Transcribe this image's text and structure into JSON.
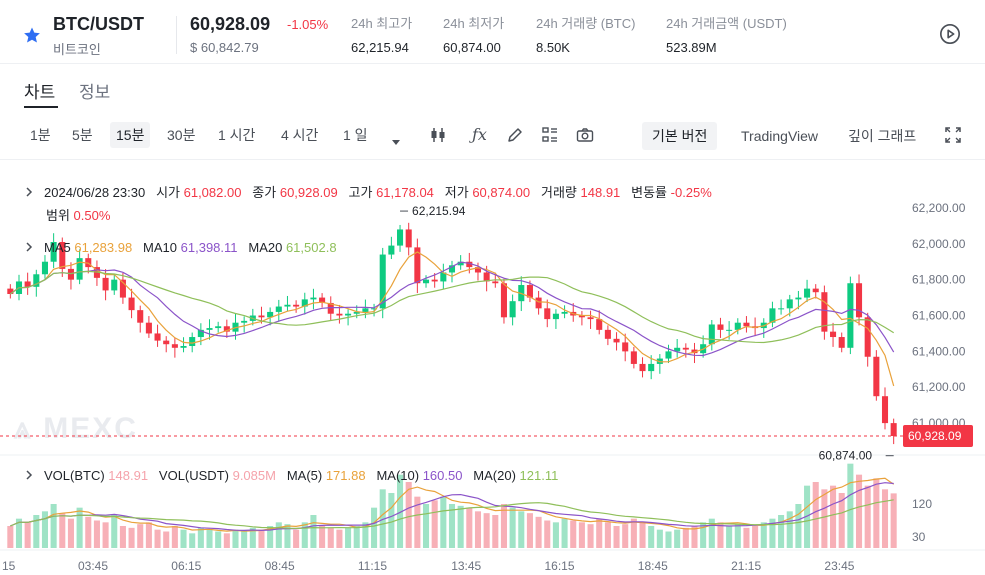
{
  "header": {
    "pair": "BTC/USDT",
    "coin_name": "비트코인",
    "last_price": "60,928.09",
    "change": "-1.05%",
    "usd_price": "$ 60,842.79",
    "stats": [
      {
        "label": "24h 최고가",
        "value": "62,215.94"
      },
      {
        "label": "24h 최저가",
        "value": "60,874.00"
      },
      {
        "label": "24h 거래량 (BTC)",
        "value": "8.50K"
      },
      {
        "label": "24h 거래금액 (USDT)",
        "value": "523.89M"
      }
    ]
  },
  "tabs": [
    {
      "label": "차트",
      "active": true
    },
    {
      "label": "정보",
      "active": false
    }
  ],
  "toolbar": {
    "timeframes": [
      "1분",
      "5분",
      "15분",
      "30분",
      "1 시간",
      "4 시간",
      "1 일"
    ],
    "active_timeframe": "15분",
    "views": [
      "기본 버전",
      "TradingView",
      "깊이 그래프"
    ],
    "active_view": "기본 버전"
  },
  "legend": {
    "datetime": "2024/06/28 23:30",
    "open_label": "시가",
    "open": "61,082.00",
    "close_label": "종가",
    "close": "60,928.09",
    "high_label": "고가",
    "high": "61,178.04",
    "low_label": "저가",
    "low": "60,874.00",
    "volume_label": "거래량",
    "volume": "148.91",
    "change_label": "변동률",
    "change": "-0.25%",
    "range_label": "범위",
    "range": "0.50%",
    "ma5_label": "MA5",
    "ma5": "61,283.98",
    "ma10_label": "MA10",
    "ma10": "61,398.11",
    "ma20_label": "MA20",
    "ma20": "61,502.8"
  },
  "vol_legend": {
    "vol_btc_label": "VOL(BTC)",
    "vol_btc": "148.91",
    "vol_usdt_label": "VOL(USDT)",
    "vol_usdt": "9.085M",
    "ma5_label": "MA(5)",
    "ma5": "171.88",
    "ma10_label": "MA(10)",
    "ma10": "160.50",
    "ma20_label": "MA(20)",
    "ma20": "121.11"
  },
  "chart_data": {
    "type": "candlestick",
    "price_ticks": [
      "62,200.00",
      "62,000.00",
      "61,800.00",
      "61,600.00",
      "61,400.00",
      "61,200.00",
      "61,000.00"
    ],
    "price_tick_values": [
      62200,
      62000,
      61800,
      61600,
      61400,
      61200,
      61000
    ],
    "price_range": [
      60850,
      62300
    ],
    "current_price_label": "60,928.09",
    "current_price": 60928.09,
    "high_marker": "62,215.94",
    "low_marker": "60,874.00",
    "volume_ticks": [
      "120",
      "30"
    ],
    "volume_tick_values": [
      120,
      30
    ],
    "volume_range": [
      0,
      240
    ],
    "time_labels": [
      "15",
      "03:45",
      "06:15",
      "08:45",
      "11:15",
      "13:45",
      "16:15",
      "18:45",
      "21:15",
      "23:45"
    ],
    "closes": [
      61720,
      61790,
      61760,
      61830,
      61900,
      62010,
      61860,
      61800,
      61920,
      61870,
      61810,
      61740,
      61800,
      61700,
      61630,
      61560,
      61500,
      61460,
      61440,
      61420,
      61430,
      61480,
      61520,
      61530,
      61540,
      61510,
      61560,
      61570,
      61600,
      61590,
      61620,
      61650,
      61660,
      61650,
      61690,
      61700,
      61670,
      61610,
      61600,
      61610,
      61620,
      61640,
      61640,
      61940,
      61990,
      62080,
      61980,
      61780,
      61800,
      61790,
      61840,
      61880,
      61900,
      61870,
      61840,
      61790,
      61780,
      61590,
      61680,
      61770,
      61700,
      61640,
      61580,
      61610,
      61620,
      61600,
      61590,
      61580,
      61520,
      61470,
      61450,
      61400,
      61330,
      61290,
      61330,
      61360,
      61400,
      61420,
      61410,
      61390,
      61440,
      61550,
      61520,
      61520,
      61560,
      61540,
      61530,
      61560,
      61640,
      61640,
      61690,
      61700,
      61750,
      61730,
      61510,
      61480,
      61420,
      61780,
      61590,
      61370,
      61150,
      61000,
      60928
    ],
    "volumes": [
      60,
      80,
      70,
      90,
      100,
      120,
      95,
      80,
      110,
      85,
      75,
      70,
      90,
      60,
      55,
      65,
      70,
      50,
      45,
      60,
      50,
      40,
      55,
      50,
      45,
      40,
      50,
      45,
      55,
      50,
      60,
      70,
      65,
      50,
      70,
      90,
      60,
      55,
      50,
      55,
      60,
      70,
      110,
      160,
      150,
      200,
      180,
      140,
      120,
      130,
      140,
      120,
      115,
      110,
      100,
      95,
      90,
      120,
      110,
      100,
      95,
      85,
      75,
      70,
      80,
      75,
      70,
      65,
      80,
      70,
      60,
      65,
      80,
      70,
      60,
      50,
      45,
      50,
      55,
      60,
      70,
      80,
      70,
      60,
      65,
      55,
      60,
      70,
      80,
      90,
      100,
      120,
      170,
      180,
      160,
      170,
      150,
      230,
      200,
      170,
      190,
      160,
      149
    ]
  }
}
